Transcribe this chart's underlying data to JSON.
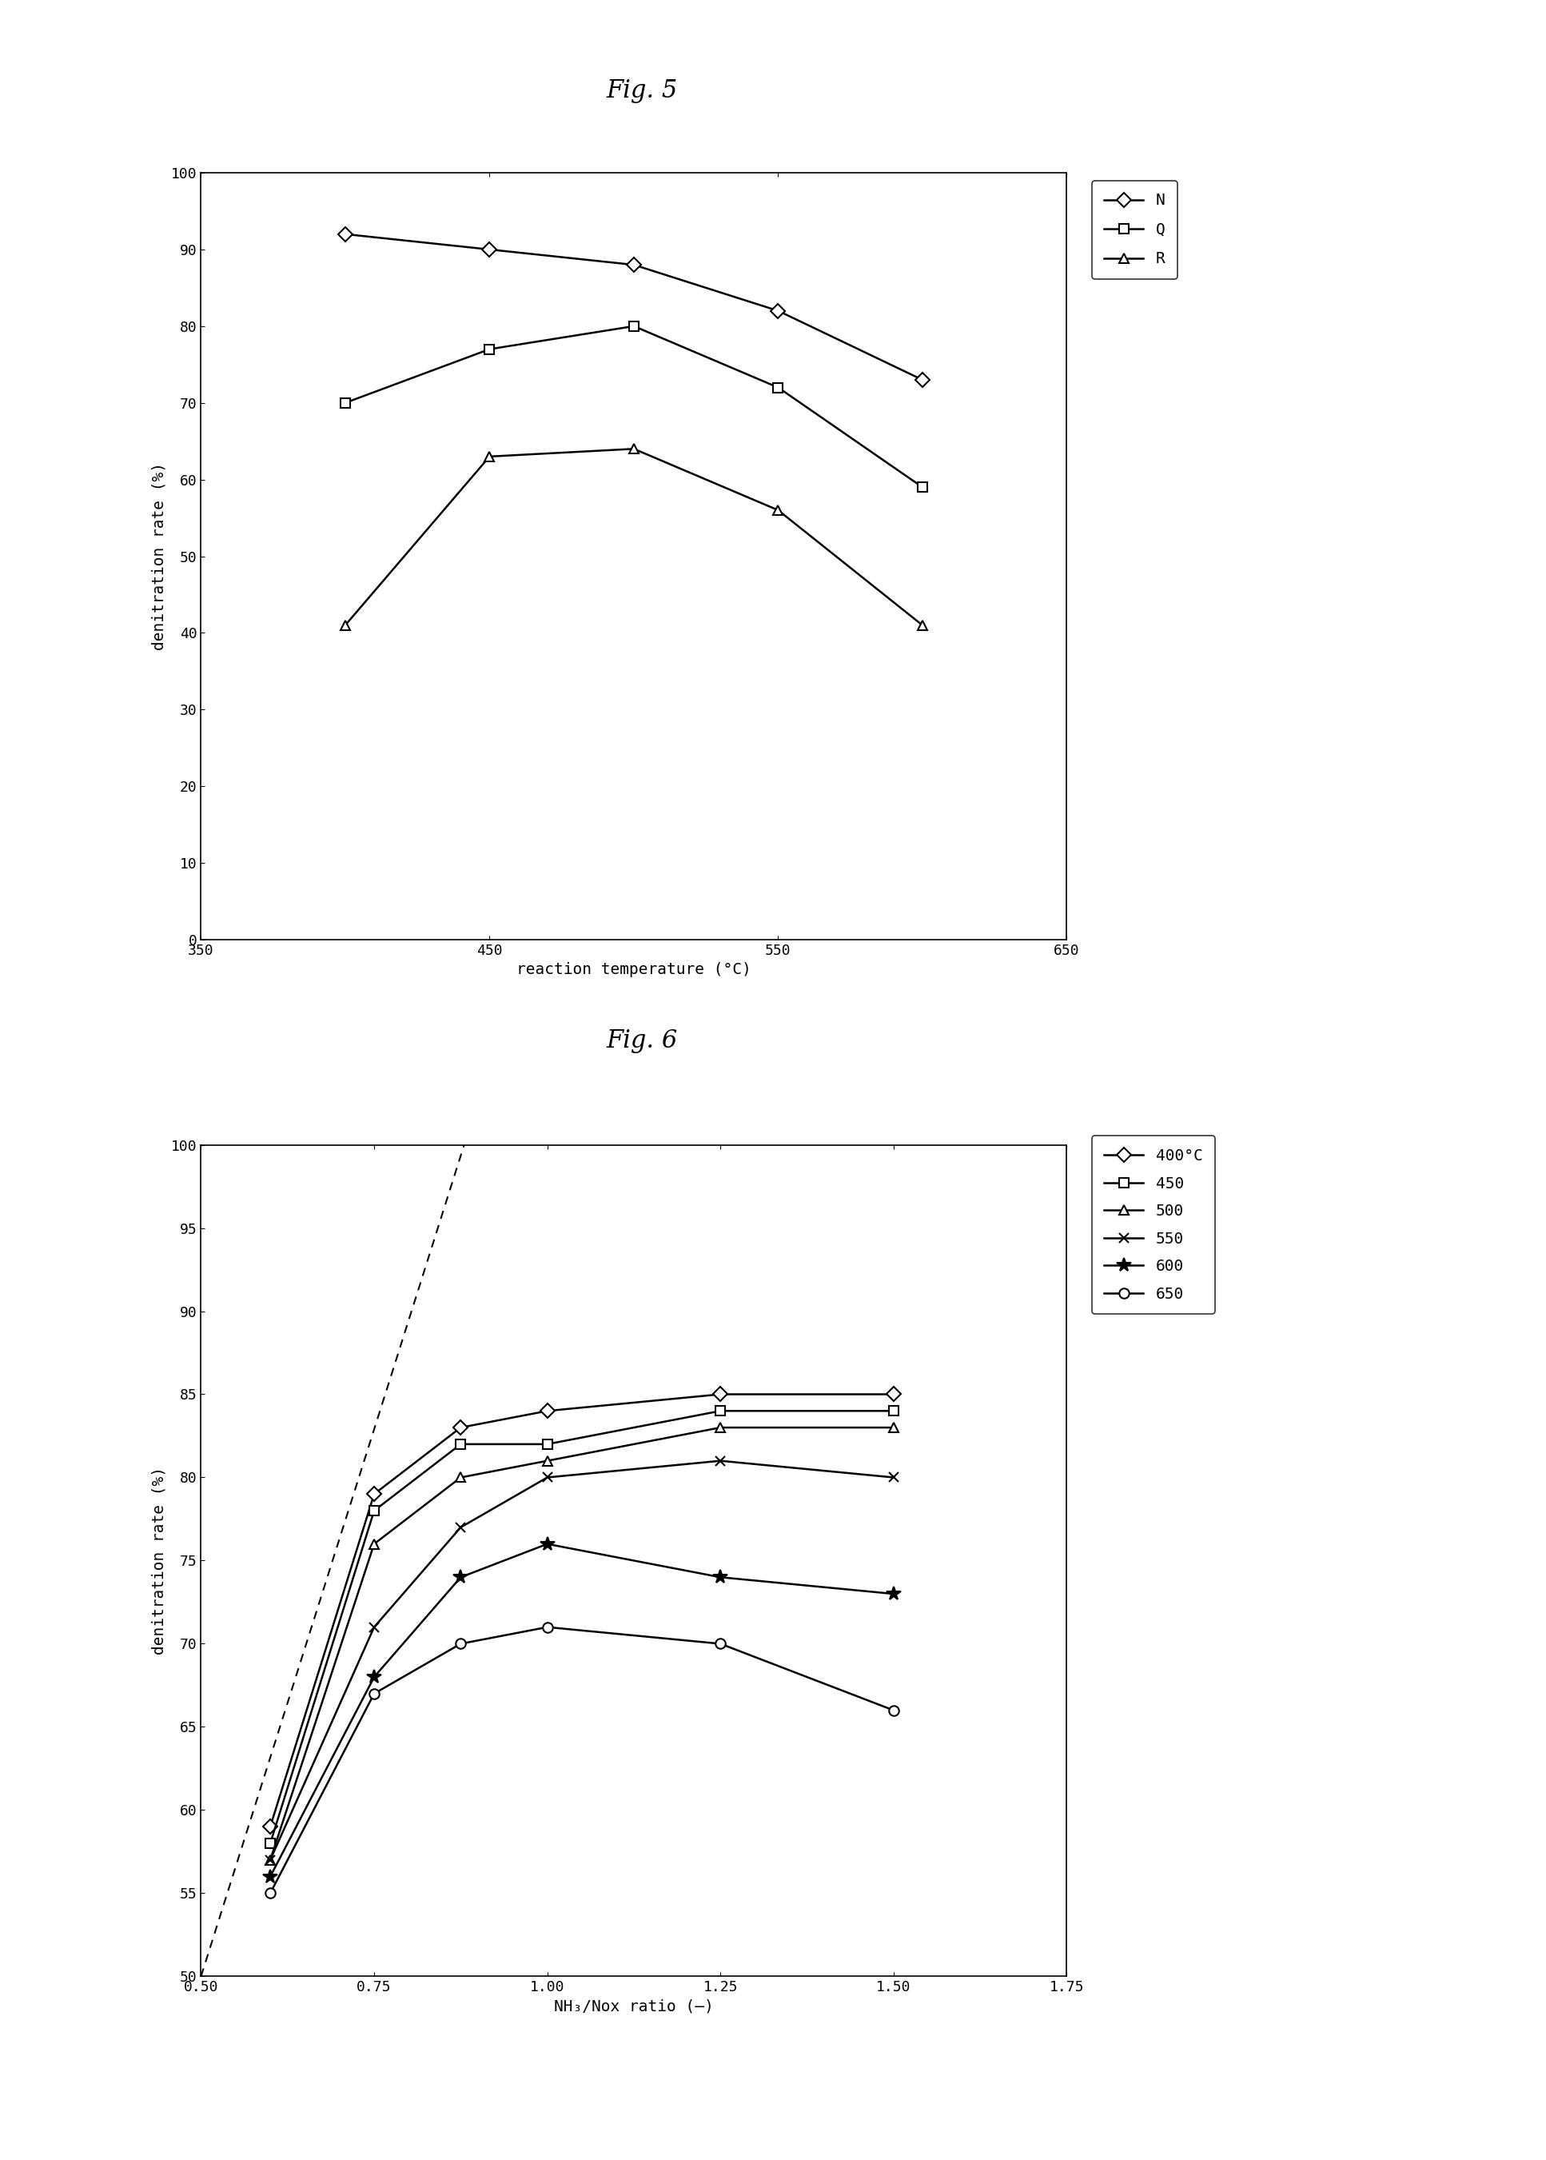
{
  "fig5": {
    "title": "Fig. 5",
    "xlabel": "reaction temperature (°C)",
    "ylabel": "denitration rate (%)",
    "xlim": [
      350,
      650
    ],
    "ylim": [
      0,
      100
    ],
    "xticks": [
      350,
      450,
      550,
      650
    ],
    "yticks": [
      0,
      10,
      20,
      30,
      40,
      50,
      60,
      70,
      80,
      90,
      100
    ],
    "series_order": [
      "N",
      "Q",
      "R"
    ],
    "series": {
      "N": {
        "x": [
          400,
          450,
          500,
          550,
          600
        ],
        "y": [
          92,
          90,
          88,
          82,
          73
        ],
        "marker": "D",
        "label": "N"
      },
      "Q": {
        "x": [
          400,
          450,
          500,
          550,
          600
        ],
        "y": [
          70,
          77,
          80,
          72,
          59
        ],
        "marker": "s",
        "label": "Q"
      },
      "R": {
        "x": [
          400,
          450,
          500,
          550,
          600
        ],
        "y": [
          41,
          63,
          64,
          56,
          41
        ],
        "marker": "^",
        "label": "R"
      }
    }
  },
  "fig6": {
    "title": "Fig. 6",
    "xlabel": "NH₃/Nox ratio (—)",
    "ylabel": "denitration rate (%)",
    "xlim": [
      0.5,
      1.75
    ],
    "ylim": [
      50,
      100
    ],
    "xticks": [
      0.5,
      0.75,
      1.0,
      1.25,
      1.5,
      1.75
    ],
    "yticks": [
      50,
      55,
      60,
      65,
      70,
      75,
      80,
      85,
      90,
      95,
      100
    ],
    "series_order": [
      "400",
      "450",
      "500",
      "550",
      "600",
      "650"
    ],
    "series": {
      "400": {
        "x": [
          0.6,
          0.75,
          0.875,
          1.0,
          1.25,
          1.5
        ],
        "y": [
          59,
          79,
          83,
          84,
          85,
          85
        ],
        "marker": "D",
        "label": "400°C"
      },
      "450": {
        "x": [
          0.6,
          0.75,
          0.875,
          1.0,
          1.25,
          1.5
        ],
        "y": [
          58,
          78,
          82,
          82,
          84,
          84
        ],
        "marker": "s",
        "label": "450"
      },
      "500": {
        "x": [
          0.6,
          0.75,
          0.875,
          1.0,
          1.25,
          1.5
        ],
        "y": [
          57,
          76,
          80,
          81,
          83,
          83
        ],
        "marker": "^",
        "label": "500"
      },
      "550": {
        "x": [
          0.6,
          0.75,
          0.875,
          1.0,
          1.25,
          1.5
        ],
        "y": [
          57,
          71,
          77,
          80,
          81,
          80
        ],
        "marker": "x",
        "label": "550"
      },
      "600": {
        "x": [
          0.6,
          0.75,
          0.875,
          1.0,
          1.25,
          1.5
        ],
        "y": [
          56,
          68,
          74,
          76,
          74,
          73
        ],
        "marker": "*",
        "label": "600"
      },
      "650": {
        "x": [
          0.6,
          0.75,
          0.875,
          1.0,
          1.25,
          1.5
        ],
        "y": [
          55,
          67,
          70,
          71,
          70,
          66
        ],
        "marker": "o",
        "label": "650"
      }
    },
    "dashed_line": {
      "x": [
        0.5,
        0.88
      ],
      "y": [
        50,
        100
      ]
    }
  },
  "background_color": "#ffffff",
  "line_color": "#000000",
  "title_fontsize": 22,
  "label_fontsize": 14,
  "tick_fontsize": 13,
  "legend_fontsize": 14,
  "markersize": 9,
  "linewidth": 1.8
}
